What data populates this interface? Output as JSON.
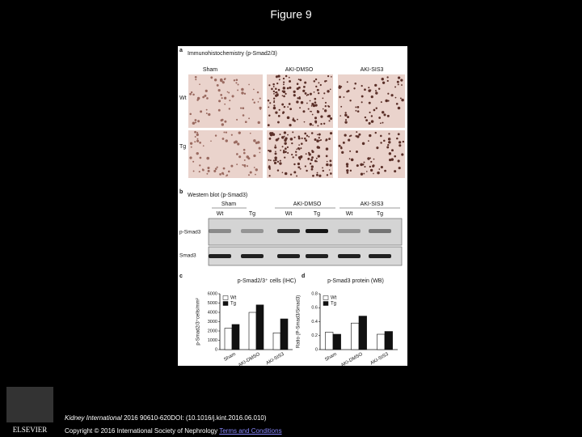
{
  "title": "Figure 9",
  "figure": {
    "panel_a": {
      "label": "a",
      "title": "Immunohistochemistry (p-Smad2/3)",
      "columns": [
        "Sham",
        "AKI-DMSO",
        "AKI-SIS3"
      ],
      "rows": [
        "Wt",
        "Tg"
      ]
    },
    "panel_b": {
      "label": "b",
      "title": "Western blot (p-Smad3)",
      "groups": [
        "Sham",
        "AKI-DMSO",
        "AKI-SIS3"
      ],
      "lanes": [
        "Wt",
        "Tg",
        "Wt",
        "Tg",
        "Wt",
        "Tg"
      ],
      "blots": [
        "p-Smad3",
        "Smad3"
      ]
    },
    "panel_c": {
      "label": "c"
    },
    "panel_d": {
      "label": "d"
    }
  },
  "chart_data": [
    {
      "type": "bar",
      "title": "p-Smad2/3⁺ cells (IHC)",
      "y_label": "p-Smad2/3⁺cells/mm²",
      "categories": [
        "Sham",
        "AKI-DMSO",
        "AKI-SIS3"
      ],
      "series": [
        {
          "name": "Wt",
          "color": "#ffffff",
          "values": [
            2300,
            4000,
            1800
          ]
        },
        {
          "name": "Tg",
          "color": "#111111",
          "values": [
            2700,
            4800,
            3300
          ]
        }
      ],
      "ylim": [
        0,
        6000
      ],
      "yticks": [
        0,
        1000,
        2000,
        3000,
        4000,
        5000,
        6000
      ]
    },
    {
      "type": "bar",
      "title": "p-Smad3 protein (WB)",
      "y_label": "Ratio (P-Smad3/Smad3)",
      "categories": [
        "Sham",
        "AKI-DMSO",
        "AKI-SIS3"
      ],
      "series": [
        {
          "name": "Wt",
          "color": "#ffffff",
          "values": [
            0.25,
            0.38,
            0.22
          ]
        },
        {
          "name": "Tg",
          "color": "#111111",
          "values": [
            0.22,
            0.48,
            0.26
          ]
        }
      ],
      "ylim": [
        0,
        0.8
      ],
      "yticks": [
        0,
        0.2,
        0.4,
        0.6,
        0.8
      ]
    }
  ],
  "footer": {
    "logo": "ELSEVIER",
    "journal": "Kidney International",
    "citation": " 2016 90610-620DOI: (10.1016/j.kint.2016.06.010) ",
    "copyright": "Copyright © 2016 International Society of Nephrology ",
    "link": "Terms and Conditions"
  }
}
